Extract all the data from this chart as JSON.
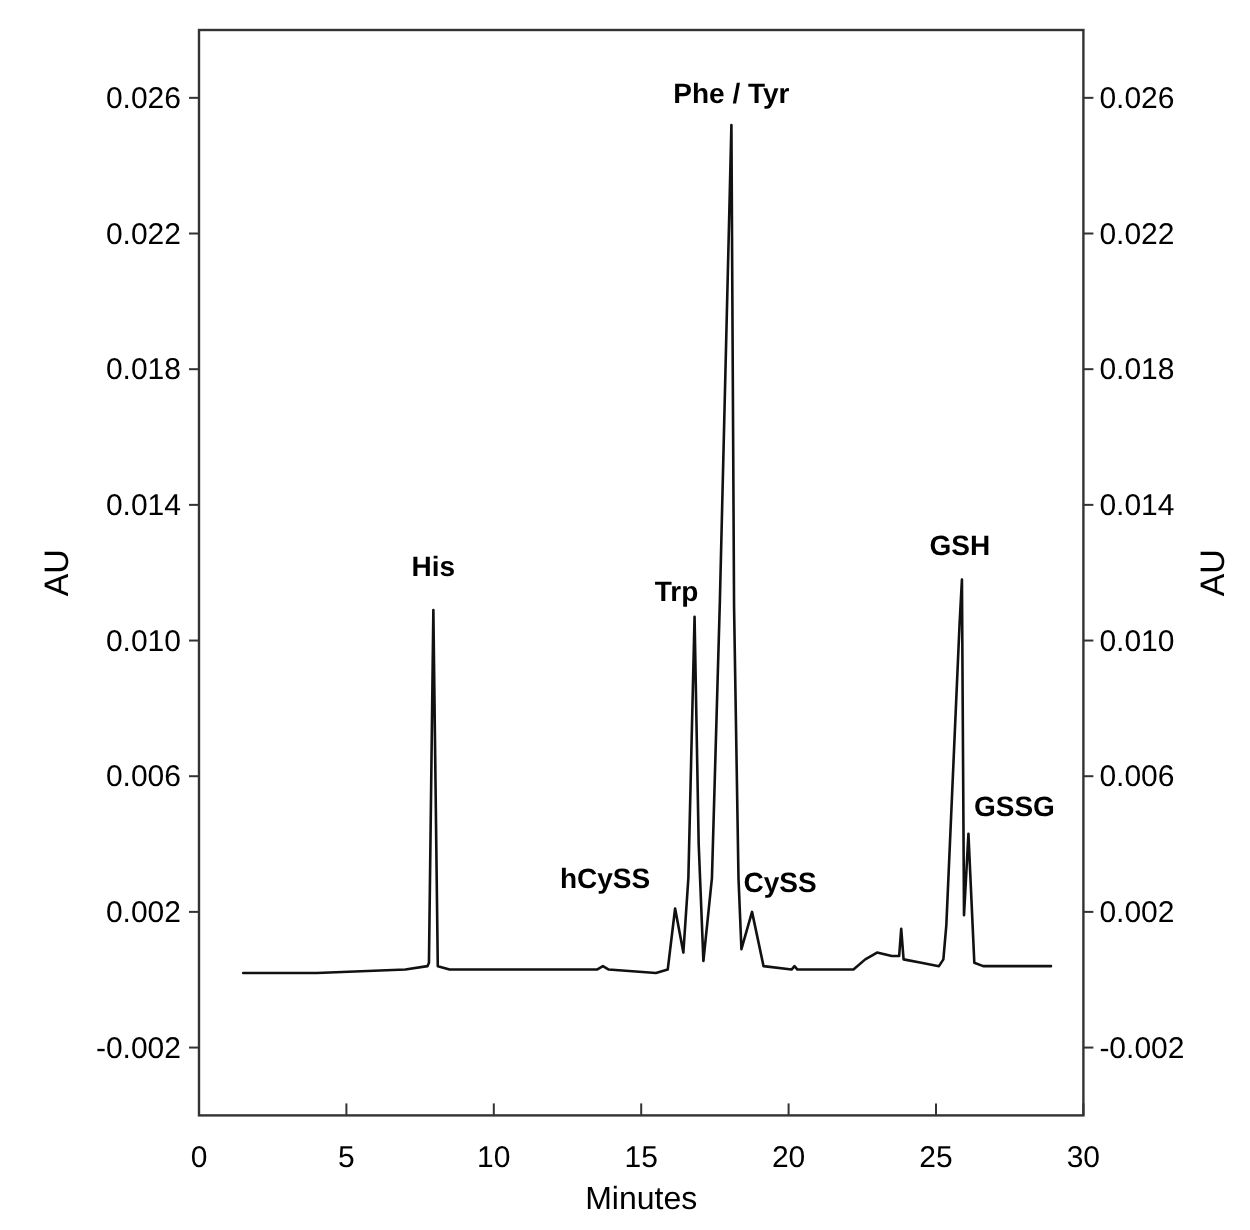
{
  "chart_data": {
    "type": "line",
    "xlabel": "Minutes",
    "ylabel": "AU",
    "y2label": "AU",
    "x": [
      1.5,
      4,
      7,
      7.75,
      7.8,
      7.95,
      8.1,
      8.5,
      12,
      13.5,
      13.7,
      13.9,
      15.5,
      15.9,
      16.15,
      16.43,
      16.6,
      16.81,
      16.95,
      17.11,
      17.4,
      17.67,
      18.06,
      18.15,
      18.3,
      18.4,
      18.76,
      19.15,
      20.1,
      20.2,
      20.3,
      21.5,
      22.2,
      22.6,
      23,
      23.5,
      23.75,
      23.82,
      23.9,
      24.5,
      25.1,
      25.25,
      25.35,
      25.8,
      25.88,
      25.95,
      26.1,
      26.3,
      26.6,
      28.9
    ],
    "series": [
      {
        "color": "#111111",
        "values": [
          0.0002,
          0.0002,
          0.0003,
          0.0004,
          0.0005,
          0.0109,
          0.0004,
          0.0003,
          0.0003,
          0.0003,
          0.0004,
          0.0003,
          0.0002,
          0.0003,
          0.0021,
          0.0008,
          0.003,
          0.0107,
          0.004,
          0.00055,
          0.003,
          0.0112,
          0.0252,
          0.011,
          0.003,
          0.0009,
          0.002,
          0.0004,
          0.0003,
          0.0004,
          0.0003,
          0.0003,
          0.0003,
          0.0006,
          0.0008,
          0.0007,
          0.0007,
          0.0015,
          0.0006,
          0.0005,
          0.0004,
          0.0006,
          0.0016,
          0.0105,
          0.0118,
          0.0019,
          0.0043,
          0.0005,
          0.0004,
          0.0004
        ]
      }
    ],
    "xlim": [
      0,
      30
    ],
    "xticks": [
      0,
      5,
      10,
      15,
      20,
      25,
      30
    ],
    "ylim": [
      -0.004,
      0.028
    ],
    "yticks": [
      -0.002,
      0.002,
      0.006,
      {
        "value": 0.01,
        "label": "0.010"
      },
      0.014,
      0.018,
      0.022,
      0.026
    ],
    "y2lim": [
      -0.004,
      0.028
    ],
    "y2ticks": [
      -0.002,
      0.002,
      0.006,
      {
        "value": 0.01,
        "label": "0.010"
      },
      0.014,
      0.018,
      0.022,
      0.026
    ],
    "annotations": [
      {
        "text": "His",
        "x": 7.95,
        "y": 0.0109
      },
      {
        "text": "hCySS",
        "x": 16.15,
        "y": 0.0021
      },
      {
        "text": "Trp",
        "x": 16.81,
        "y": 0.0107
      },
      {
        "text": "Phe / Tyr",
        "x": 18.06,
        "y": 0.0252
      },
      {
        "text": "CySS",
        "x": 18.76,
        "y": 0.002
      },
      {
        "text": "GSH",
        "x": 25.88,
        "y": 0.0118
      },
      {
        "text": "GSSG",
        "x": 26.1,
        "y": 0.0043
      }
    ]
  }
}
